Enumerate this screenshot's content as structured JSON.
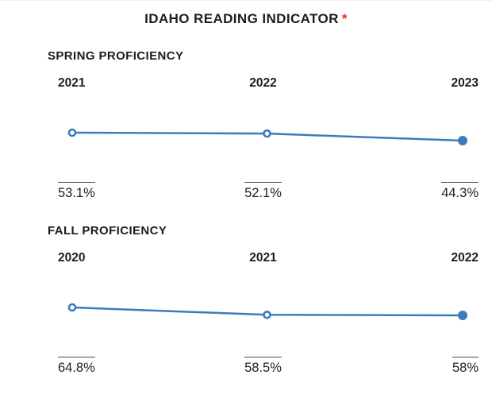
{
  "page": {
    "title": "IDAHO READING INDICATOR",
    "title_asterisk": "*",
    "accent_red": "#e8301f",
    "line_blue": "#3d7bbd",
    "text_dark": "#1d1d1b"
  },
  "chart_data": [
    {
      "type": "line",
      "title": "SPRING PROFICIENCY",
      "categories": [
        "2021",
        "2022",
        "2023"
      ],
      "values": [
        53.1,
        52.1,
        44.3
      ],
      "value_labels": [
        "53.1%",
        "52.1%",
        "44.3%"
      ],
      "unit": "%",
      "marker_styles": [
        "open",
        "open",
        "filled"
      ],
      "line_color": "#3d7bbd",
      "xlabel": "",
      "ylabel": "",
      "grid": false,
      "axes_hidden": true,
      "legend": "none"
    },
    {
      "type": "line",
      "title": "FALL PROFICIENCY",
      "categories": [
        "2020",
        "2021",
        "2022"
      ],
      "values": [
        64.8,
        58.5,
        58
      ],
      "value_labels": [
        "64.8%",
        "58.5%",
        "58%"
      ],
      "unit": "%",
      "marker_styles": [
        "open",
        "open",
        "filled"
      ],
      "line_color": "#3d7bbd",
      "xlabel": "",
      "ylabel": "",
      "grid": false,
      "axes_hidden": true,
      "legend": "none"
    }
  ]
}
